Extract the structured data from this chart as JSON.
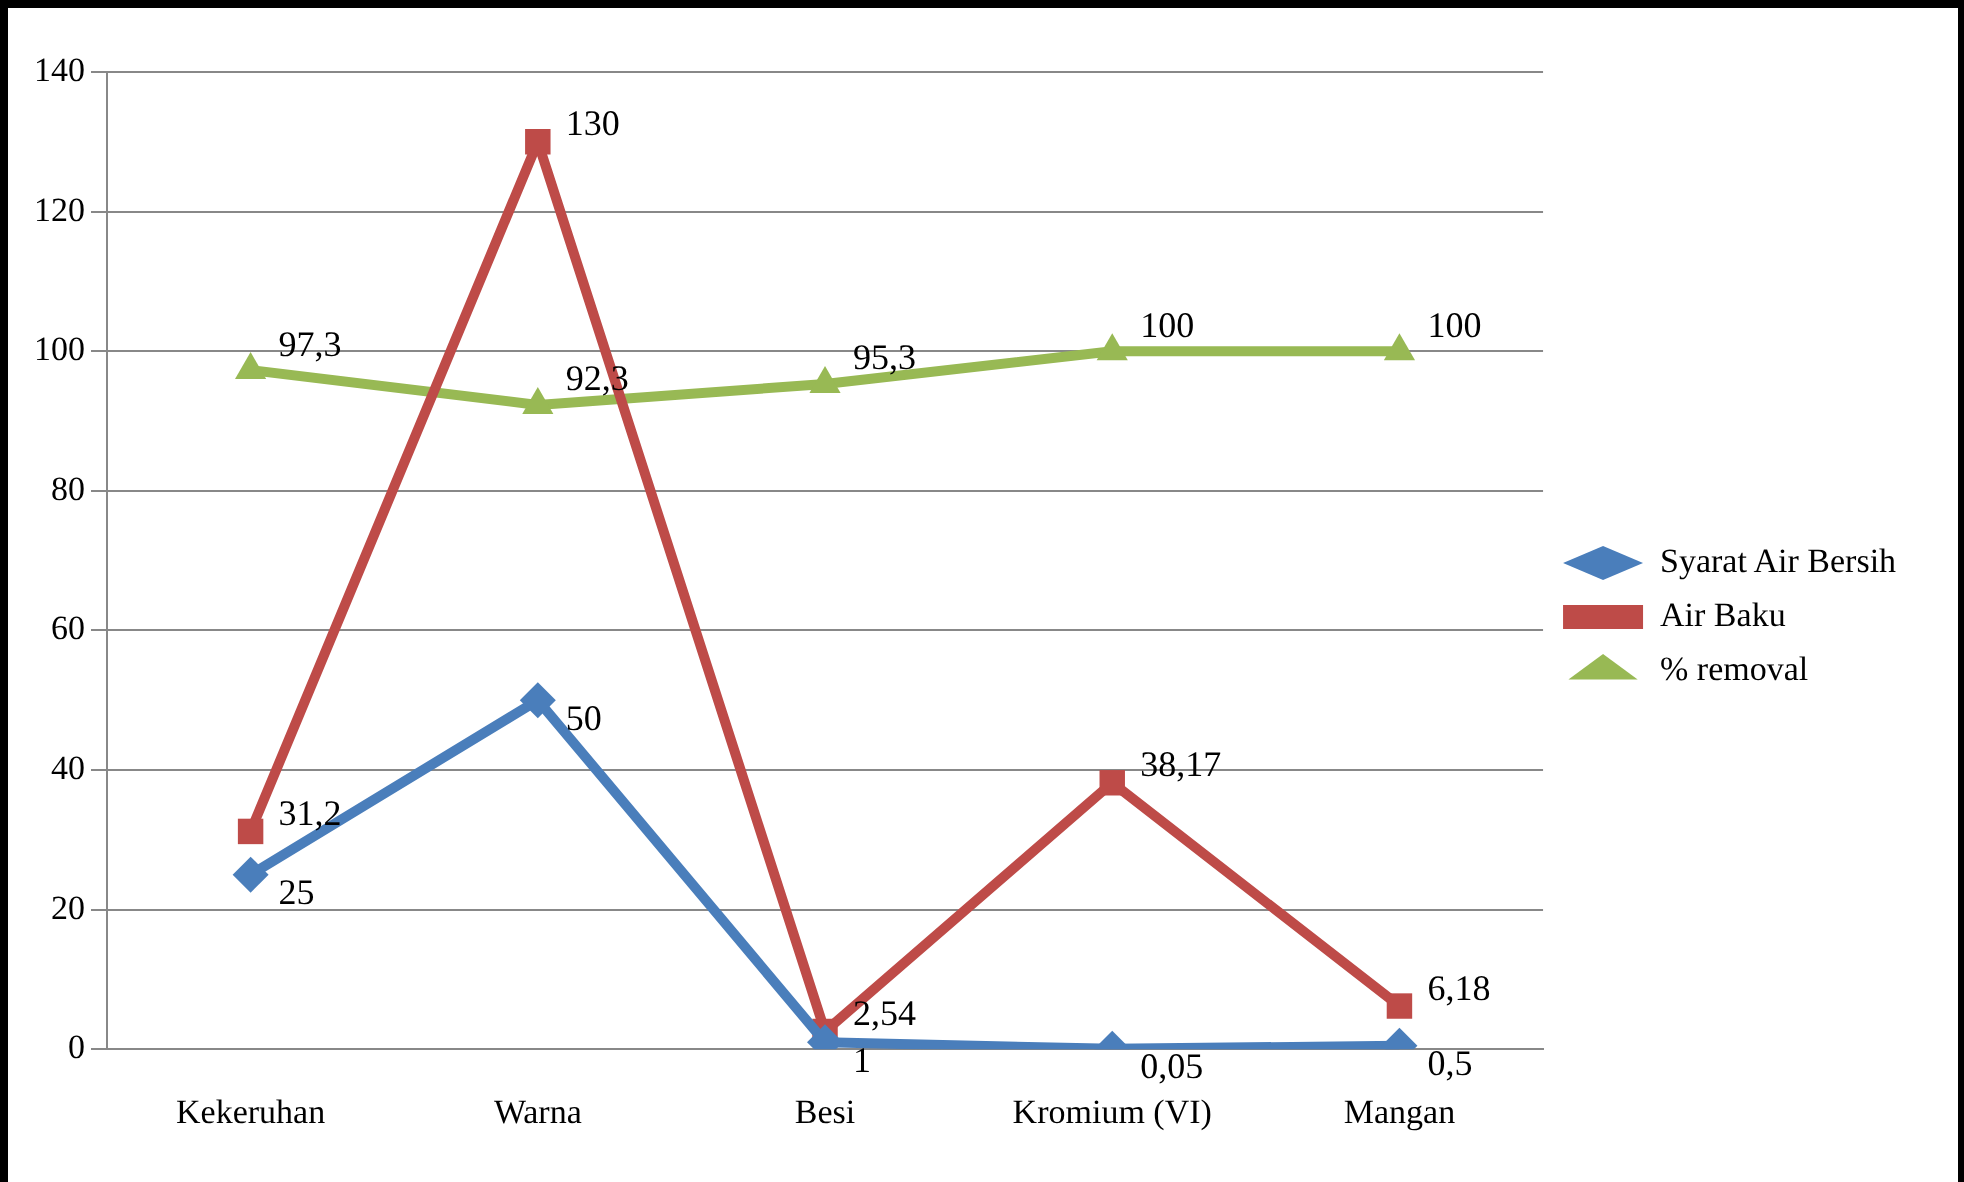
{
  "chart_data": {
    "type": "line",
    "categories": [
      "Kekeruhan",
      "Warna",
      "Besi",
      "Kromium (VI)",
      "Mangan"
    ],
    "series": [
      {
        "name": "Syarat Air Bersih",
        "color": "#4a7ebb",
        "marker": "diamond",
        "values": [
          25,
          50,
          1,
          0.05,
          0.5
        ],
        "value_labels": [
          "25",
          "50",
          "1",
          "0,05",
          "0,5"
        ]
      },
      {
        "name": "Air Baku",
        "color": "#be4b48",
        "marker": "square",
        "values": [
          31.2,
          130,
          2.54,
          38.17,
          6.18
        ],
        "value_labels": [
          "31,2",
          "130",
          "2,54",
          "38,17",
          "6,18"
        ]
      },
      {
        "name": "% removal",
        "color": "#98b954",
        "marker": "triangle",
        "values": [
          97.3,
          92.3,
          95.3,
          100,
          100
        ],
        "value_labels": [
          "97,3",
          "92,3",
          "95,3",
          "100",
          "100"
        ]
      }
    ],
    "ylim": [
      0,
      140
    ],
    "yticks": [
      0,
      20,
      40,
      60,
      80,
      100,
      120,
      140
    ],
    "grid": "y",
    "legend": "right"
  }
}
